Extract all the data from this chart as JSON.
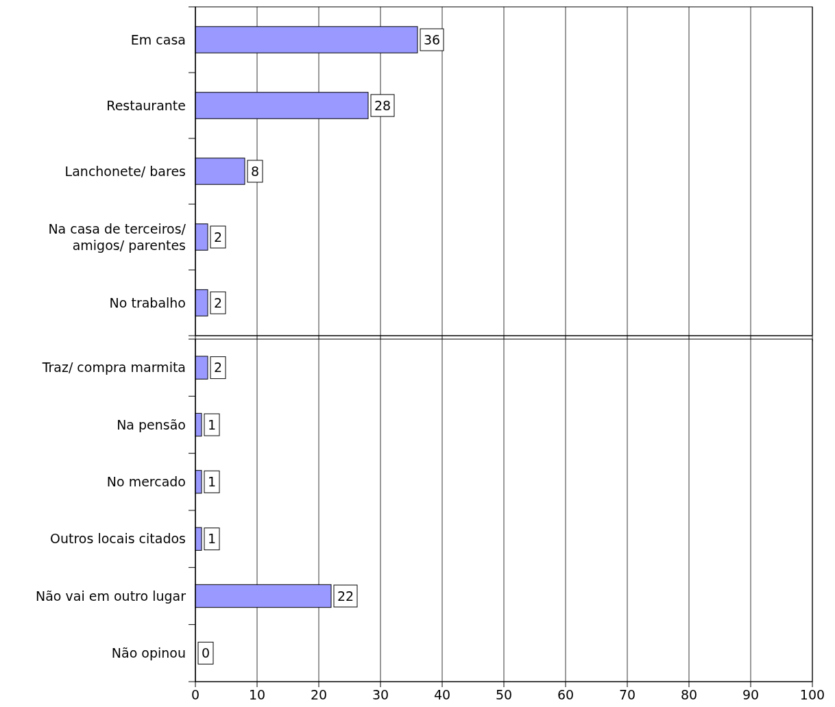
{
  "chart_data": [
    {
      "type": "bar",
      "orientation": "horizontal",
      "categories": [
        "Em casa",
        "Restaurante",
        "Lanchonete/ bares",
        "Na casa de terceiros/ amigos/ parentes",
        "No trabalho"
      ],
      "values": [
        36,
        28,
        8,
        2,
        2
      ],
      "color": "#9999ff",
      "xlim": [
        0,
        100
      ],
      "xticks": [
        0,
        10,
        20,
        30,
        40,
        50,
        60,
        70,
        80,
        90,
        100
      ],
      "tick_labels": "y",
      "grid": "x",
      "data_labels": true
    },
    {
      "type": "bar",
      "orientation": "horizontal",
      "categories": [
        "Traz/ compra marmita",
        "Na pensão",
        "No mercado",
        "Outros locais citados",
        "Não vai em outro lugar",
        "Não opinou"
      ],
      "values": [
        2,
        1,
        1,
        1,
        22,
        0
      ],
      "color": "#9999ff",
      "xlim": [
        0,
        100
      ],
      "xticks": [
        0,
        10,
        20,
        30,
        40,
        50,
        60,
        70,
        80,
        90,
        100
      ],
      "grid": "x",
      "data_labels": true
    }
  ]
}
